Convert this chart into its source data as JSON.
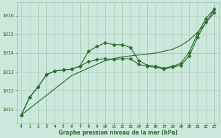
{
  "title": "Graphe pression niveau de la mer (hPa)",
  "background_color": "#cce8dc",
  "grid_color": "#aaccbb",
  "line_color": "#2d6e2d",
  "marker_color": "#2d6e2d",
  "x_ticks": [
    0,
    1,
    2,
    3,
    4,
    5,
    6,
    7,
    8,
    9,
    10,
    11,
    12,
    13,
    14,
    15,
    16,
    17,
    18,
    19,
    20,
    21,
    22,
    23
  ],
  "y_ticks": [
    1011,
    1012,
    1013,
    1014,
    1015,
    1016
  ],
  "ylim": [
    1010.3,
    1016.7
  ],
  "xlim": [
    -0.5,
    23.5
  ],
  "line1": [
    1010.7,
    1011.65,
    1012.2,
    1012.85,
    1013.05,
    1013.1,
    1013.15,
    1013.3,
    1014.1,
    1014.35,
    1014.55,
    1014.45,
    1014.45,
    1014.3,
    1013.6,
    1013.35,
    1013.3,
    1013.2,
    1013.3,
    1013.45,
    1014.05,
    1015.05,
    1015.85,
    1016.35
  ],
  "line2": [
    1010.7,
    1011.65,
    1012.2,
    1012.85,
    1013.05,
    1013.1,
    1013.15,
    1013.3,
    1013.55,
    1013.65,
    1013.7,
    1013.65,
    1013.7,
    1013.7,
    1013.4,
    1013.3,
    1013.25,
    1013.15,
    1013.25,
    1013.35,
    1013.85,
    1014.85,
    1015.65,
    1016.15
  ],
  "trend": [
    1010.7,
    1011.05,
    1011.4,
    1011.75,
    1012.1,
    1012.45,
    1012.8,
    1013.0,
    1013.2,
    1013.4,
    1013.6,
    1013.7,
    1013.8,
    1013.85,
    1013.9,
    1013.95,
    1014.0,
    1014.1,
    1014.2,
    1014.4,
    1014.7,
    1015.1,
    1015.6,
    1016.35
  ]
}
